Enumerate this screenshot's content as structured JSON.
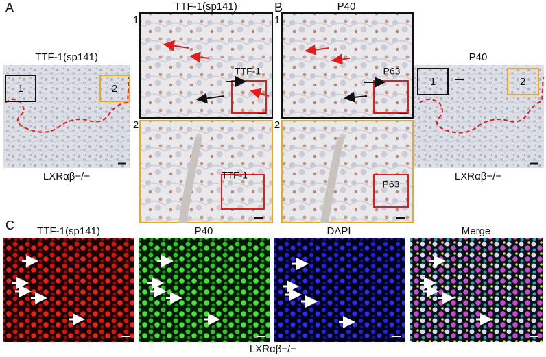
{
  "panel_a": {
    "label": "A",
    "overview_title": "TTF-1(sp141)",
    "overview_caption": "LXRαβ−/−",
    "box_labels": [
      "1",
      "2"
    ],
    "zoom_title": "TTF-1(sp141)",
    "zoom_indices": [
      "1",
      "2"
    ],
    "inset_labels": [
      "TTF-1",
      "TTF-1"
    ]
  },
  "panel_b": {
    "label": "B",
    "overview_title": "P40",
    "overview_caption": "LXRαβ−/−",
    "box_labels": [
      "1",
      "2"
    ],
    "zoom_title": "P40",
    "zoom_indices": [
      "1",
      "2"
    ],
    "inset_labels": [
      "P63",
      "P63"
    ]
  },
  "panel_c": {
    "label": "C",
    "channels": [
      "TTF-1(sp141)",
      "P40",
      "DAPI",
      "Merge"
    ],
    "caption": "LXRαβ−/−"
  }
}
